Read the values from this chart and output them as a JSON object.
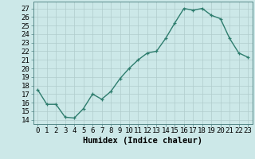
{
  "x": [
    0,
    1,
    2,
    3,
    4,
    5,
    6,
    7,
    8,
    9,
    10,
    11,
    12,
    13,
    14,
    15,
    16,
    17,
    18,
    19,
    20,
    21,
    22,
    23
  ],
  "y": [
    17.5,
    15.8,
    15.8,
    14.3,
    14.2,
    15.3,
    17.0,
    16.4,
    17.3,
    18.8,
    20.0,
    21.0,
    21.8,
    22.0,
    23.5,
    25.3,
    27.0,
    26.8,
    27.0,
    26.2,
    25.8,
    23.5,
    21.8,
    21.3
  ],
  "line_color": "#2e7d6e",
  "marker": "+",
  "marker_size": 3.5,
  "background_color": "#cce8e8",
  "grid_color": "#b0cccc",
  "xlabel": "Humidex (Indice chaleur)",
  "xlabel_fontsize": 7.5,
  "ylim": [
    13.5,
    27.8
  ],
  "xlim": [
    -0.5,
    23.5
  ],
  "yticks": [
    14,
    15,
    16,
    17,
    18,
    19,
    20,
    21,
    22,
    23,
    24,
    25,
    26,
    27
  ],
  "xticks": [
    0,
    1,
    2,
    3,
    4,
    5,
    6,
    7,
    8,
    9,
    10,
    11,
    12,
    13,
    14,
    15,
    16,
    17,
    18,
    19,
    20,
    21,
    22,
    23
  ],
  "tick_fontsize": 6.5,
  "line_width": 1.0
}
